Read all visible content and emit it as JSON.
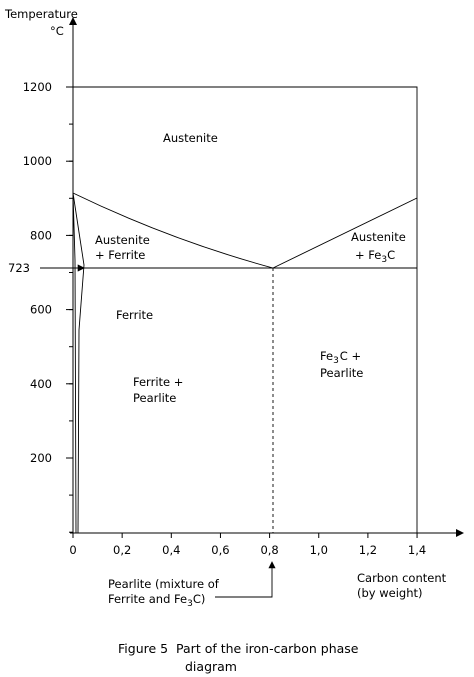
{
  "axis": {
    "y_title": "Temperature",
    "y_unit": "°C",
    "y_ticks": [
      "1200",
      "1000",
      "800",
      "600",
      "400",
      "200"
    ],
    "marker": "723",
    "x_ticks": [
      "0",
      "0,2",
      "0,4",
      "0,6",
      "0,8",
      "1,0",
      "1,2",
      "1,4"
    ],
    "x_title": [
      "Carbon content",
      "(by weight)"
    ]
  },
  "regions": {
    "austenite": "Austenite",
    "austenite_ferrite": [
      "Austenite",
      "+ Ferrite"
    ],
    "austenite_fe3c": [
      "Austenite",
      "+ Fe",
      "3",
      "C"
    ],
    "ferrite": "Ferrite",
    "ferrite_pearlite": [
      "Ferrite +",
      "Pearlite"
    ],
    "fe3c_pearlite": [
      "Fe",
      "3",
      "C +",
      "Pearlite"
    ]
  },
  "annotation": [
    "Pearlite (mixture of",
    "Ferrite and Fe",
    "3",
    "C)"
  ],
  "caption": [
    "Figure 5  Part of the iron-carbon phase",
    "diagram"
  ]
}
